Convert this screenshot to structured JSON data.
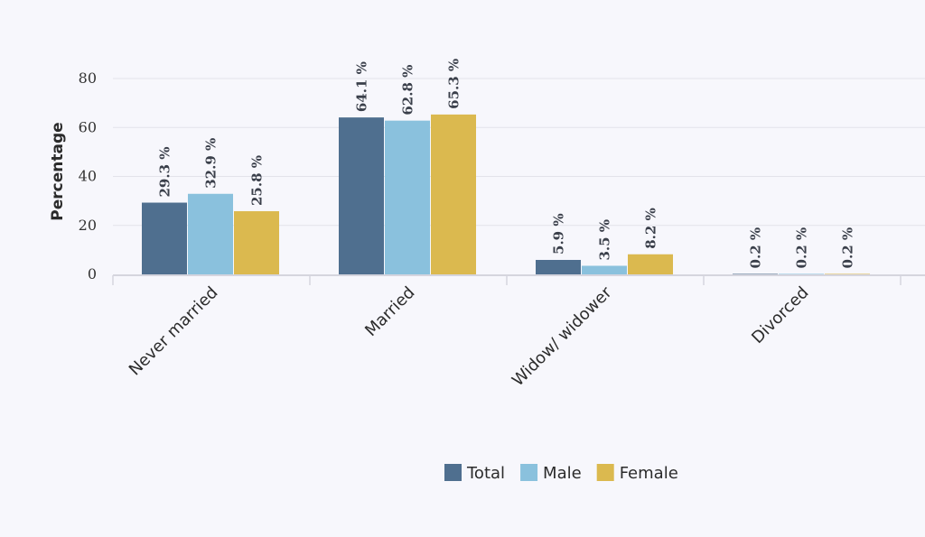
{
  "chart_data": {
    "type": "bar",
    "title": "",
    "xlabel": "",
    "ylabel": "Percentage",
    "ylim": [
      0,
      80
    ],
    "yticks": [
      0,
      20,
      40,
      60,
      80
    ],
    "grid": true,
    "legend_position": "bottom",
    "value_suffix": " %",
    "categories": [
      "Never married",
      "Married",
      "Widow/ widower",
      "Divorced"
    ],
    "series": [
      {
        "name": "Total",
        "color": "#4f6f8f",
        "values": [
          29.3,
          64.1,
          5.9,
          0.2
        ]
      },
      {
        "name": "Male",
        "color": "#8ac1dd",
        "values": [
          32.9,
          62.8,
          3.5,
          0.2
        ]
      },
      {
        "name": "Female",
        "color": "#dbb94f",
        "values": [
          25.8,
          65.3,
          8.2,
          0.2
        ]
      }
    ]
  }
}
